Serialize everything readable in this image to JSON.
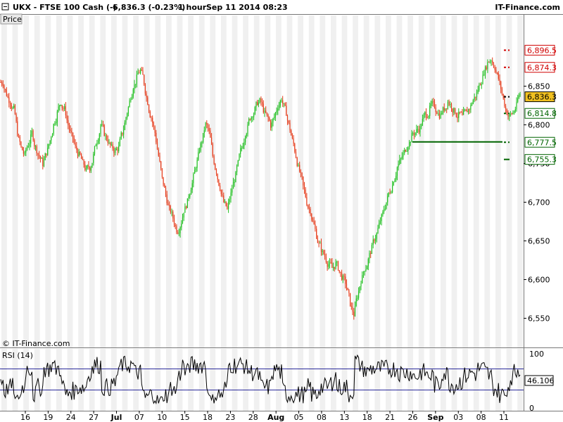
{
  "header": {
    "symbol": "UKX - FTSE 100 Cash (-)",
    "quote": "6,836.3 (-0.23%)",
    "interval": "1 hour",
    "datetime": "Sep 11 2014 08:23",
    "brand": "IT-Finance.com"
  },
  "price_tab": "Price",
  "watermark": "© IT-Finance.com",
  "rsi_label": "RSI (14)",
  "colors": {
    "up": "#1fbf1f",
    "down": "#e53b1a",
    "resistance": "#d00000",
    "support": "#006400",
    "current_bg": "#f0c020",
    "rsi_band": "#2a2a9a"
  },
  "chart_data": [
    {
      "type": "candlestick",
      "title": "UKX - FTSE 100 Cash (-)",
      "ylim": [
        6525,
        6925
      ],
      "y_ticks": [
        "6,850",
        "6,800",
        "6,750",
        "6,700",
        "6,650",
        "6,600",
        "6,550"
      ],
      "x_ticks": [
        "16",
        "19",
        "24",
        "27",
        "Jul",
        "07",
        "10",
        "15",
        "18",
        "23",
        "28",
        "Aug",
        "05",
        "08",
        "13",
        "18",
        "21",
        "26",
        "Sep",
        "03",
        "08",
        "11"
      ],
      "closes": [
        6855,
        6840,
        6830,
        6820,
        6790,
        6770,
        6760,
        6775,
        6790,
        6770,
        6760,
        6750,
        6765,
        6780,
        6800,
        6815,
        6830,
        6820,
        6800,
        6785,
        6770,
        6760,
        6750,
        6740,
        6745,
        6760,
        6780,
        6800,
        6790,
        6780,
        6770,
        6765,
        6770,
        6790,
        6810,
        6830,
        6850,
        6860,
        6870,
        6855,
        6830,
        6810,
        6790,
        6760,
        6730,
        6710,
        6690,
        6680,
        6665,
        6670,
        6690,
        6700,
        6720,
        6740,
        6760,
        6780,
        6800,
        6790,
        6760,
        6740,
        6720,
        6700,
        6690,
        6710,
        6730,
        6750,
        6770,
        6790,
        6805,
        6815,
        6825,
        6830,
        6820,
        6810,
        6800,
        6810,
        6825,
        6835,
        6820,
        6800,
        6780,
        6760,
        6740,
        6720,
        6700,
        6690,
        6670,
        6650,
        6640,
        6630,
        6620,
        6615,
        6620,
        6610,
        6600,
        6590,
        6570,
        6555,
        6580,
        6600,
        6615,
        6625,
        6640,
        6655,
        6670,
        6685,
        6700,
        6715,
        6730,
        6745,
        6755,
        6765,
        6775,
        6785,
        6790,
        6795,
        6805,
        6815,
        6820,
        6825,
        6818,
        6812,
        6822,
        6830,
        6825,
        6818,
        6812,
        6810,
        6815,
        6822,
        6832,
        6840,
        6855,
        6870,
        6880,
        6885,
        6875,
        6860,
        6840,
        6820,
        6810,
        6815,
        6825,
        6840
      ],
      "resistance_levels": [
        "6,896.5",
        "6,874.3"
      ],
      "support_levels": [
        "6,814.8",
        "6,777.5",
        "6,755.3"
      ],
      "current_price": "6,836.3",
      "support_line": 6778
    },
    {
      "type": "line",
      "title": "RSI (14)",
      "ylim": [
        0,
        100
      ],
      "y_ticks": [
        "100",
        "0"
      ],
      "bands": [
        30,
        70
      ],
      "last_value": "46.106"
    }
  ]
}
